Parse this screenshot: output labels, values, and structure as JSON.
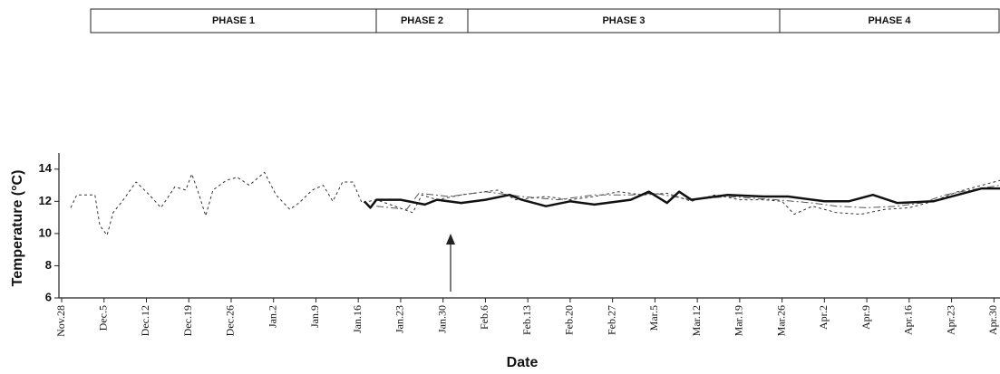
{
  "phases": [
    "PHASE 1",
    "PHASE 2",
    "PHASE 3",
    "PHASE 4"
  ],
  "chart_data": {
    "type": "line",
    "x_label": "Date",
    "y_label": "Temperature (°C)",
    "xlim": [
      0,
      155
    ],
    "ylim": [
      6,
      15
    ],
    "xticks": [
      {
        "value": 0,
        "label": "Nov.28"
      },
      {
        "value": 7,
        "label": "Dec.5"
      },
      {
        "value": 14,
        "label": "Dec.12"
      },
      {
        "value": 21,
        "label": "Dec.19"
      },
      {
        "value": 28,
        "label": "Dec.26"
      },
      {
        "value": 35,
        "label": "Jan.2"
      },
      {
        "value": 42,
        "label": "Jan.9"
      },
      {
        "value": 49,
        "label": "Jan.16"
      },
      {
        "value": 56,
        "label": "Jan.23"
      },
      {
        "value": 63,
        "label": "Jan.30"
      },
      {
        "value": 70,
        "label": "Feb.6"
      },
      {
        "value": 77,
        "label": "Feb.13"
      },
      {
        "value": 84,
        "label": "Feb.20"
      },
      {
        "value": 91,
        "label": "Feb.27"
      },
      {
        "value": 98,
        "label": "Mar.5"
      },
      {
        "value": 105,
        "label": "Mar.12"
      },
      {
        "value": 112,
        "label": "Mar.19"
      },
      {
        "value": 119,
        "label": "Mar.26"
      },
      {
        "value": 126,
        "label": "Apr.2"
      },
      {
        "value": 133,
        "label": "Apr.9"
      },
      {
        "value": 140,
        "label": "Apr.16"
      },
      {
        "value": 147,
        "label": "Apr.23"
      },
      {
        "value": 154,
        "label": "Apr.30"
      }
    ],
    "yticks": [
      6,
      8,
      10,
      12,
      14
    ],
    "grid": false,
    "series": [
      {
        "color": "#333333",
        "dash": "3,3",
        "width": 1,
        "x": [
          1.5,
          2.5,
          4.8,
          5.5,
          6.3,
          7.5,
          8.5,
          10,
          12.3,
          14.5,
          16.4,
          18.7,
          20.5,
          21.5,
          22.7,
          23.8,
          25,
          27.2,
          29,
          31,
          33.5,
          35.4,
          37.7,
          39.2,
          41.4,
          43.2,
          44.8,
          46.4,
          48.1,
          49.6,
          52,
          55,
          58,
          59.5,
          62,
          66,
          72,
          75,
          80,
          84,
          88,
          92,
          96,
          100,
          104,
          108,
          112,
          116,
          119,
          121,
          124,
          128,
          132,
          136,
          140,
          144,
          148,
          152,
          155
        ],
        "values": [
          11.6,
          12.4,
          12.4,
          12.4,
          10.5,
          9.9,
          11.3,
          12,
          13.2,
          12.4,
          11.6,
          12.9,
          12.7,
          13.7,
          12.4,
          11.1,
          12.7,
          13.3,
          13.5,
          13,
          13.8,
          12.4,
          11.5,
          11.9,
          12.7,
          13,
          12,
          13.2,
          13.2,
          11.9,
          12.1,
          11.7,
          11.3,
          12.4,
          12.1,
          12.4,
          12.7,
          12.1,
          12.3,
          12.1,
          12.3,
          12.6,
          12.4,
          12.5,
          12,
          12.4,
          12.1,
          12.1,
          12,
          11.2,
          11.7,
          11.3,
          11.2,
          11.5,
          11.6,
          12,
          12.6,
          13,
          13.3
        ]
      },
      {
        "color": "#555555",
        "dash": "8,3,2,3",
        "width": 1,
        "x": [
          52,
          57,
          59,
          64,
          70,
          76,
          82,
          88,
          94,
          98,
          104,
          110,
          118,
          124,
          128,
          133,
          138,
          142,
          146,
          150,
          155
        ],
        "values": [
          11.7,
          11.5,
          12.5,
          12.3,
          12.6,
          12.3,
          12.1,
          12.4,
          12.4,
          12.5,
          12.1,
          12.3,
          12.1,
          11.9,
          11.7,
          11.6,
          11.7,
          11.9,
          12.4,
          12.7,
          13
        ]
      },
      {
        "color": "#111111",
        "dash": "none",
        "width": 2.5,
        "x": [
          50,
          51,
          52,
          56,
          60,
          62,
          66,
          70,
          74,
          76,
          80,
          84,
          88,
          90,
          94,
          97,
          100,
          102,
          104,
          110,
          116,
          120,
          126,
          130,
          134,
          138,
          144,
          148,
          152,
          155
        ],
        "values": [
          12,
          11.6,
          12.1,
          12.1,
          11.8,
          12.1,
          11.9,
          12.1,
          12.4,
          12.1,
          11.7,
          12,
          11.8,
          11.9,
          12.1,
          12.6,
          11.9,
          12.6,
          12.1,
          12.4,
          12.3,
          12.3,
          12,
          12,
          12.4,
          11.9,
          12,
          12.4,
          12.8,
          12.8
        ]
      }
    ]
  }
}
